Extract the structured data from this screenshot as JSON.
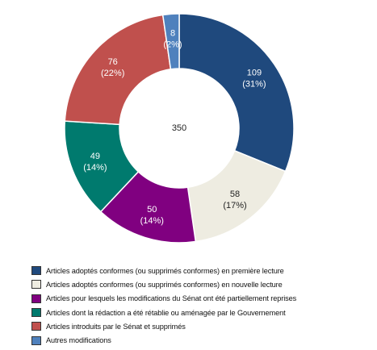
{
  "chart_data": {
    "type": "donut",
    "title": "",
    "center_label": "350",
    "legend_position": "bottom-left",
    "slices": [
      {
        "name": "Articles adoptés conformes (ou supprimés conformes) en première lecture",
        "value": 109,
        "value_label": "109",
        "percent_label": "(31%)",
        "color": "#1f497d",
        "text_color": "#ffffff"
      },
      {
        "name": "Articles adoptés conformes (ou supprimés conformes) en nouvelle lecture",
        "value": 58,
        "value_label": "58",
        "percent_label": "(17%)",
        "color": "#eeece1",
        "text_color": "#222222"
      },
      {
        "name": "Articles pour lesquels les modifications du Sénat ont été partiellement reprises",
        "value": 50,
        "value_label": "50",
        "percent_label": "(14%)",
        "color": "#800080",
        "text_color": "#ffffff"
      },
      {
        "name": "Articles dont la rédaction a été rétablie ou aménagée par le Gouvernement",
        "value": 49,
        "value_label": "49",
        "percent_label": "(14%)",
        "color": "#007a6e",
        "text_color": "#ffffff"
      },
      {
        "name": "Articles introduits par le Sénat et supprimés",
        "value": 76,
        "value_label": "76",
        "percent_label": "(22%)",
        "color": "#c0504d",
        "text_color": "#ffffff"
      },
      {
        "name": "Autres modifications",
        "value": 8,
        "value_label": "8",
        "percent_label": "(2%)",
        "color": "#4f81bd",
        "text_color": "#ffffff"
      }
    ]
  }
}
